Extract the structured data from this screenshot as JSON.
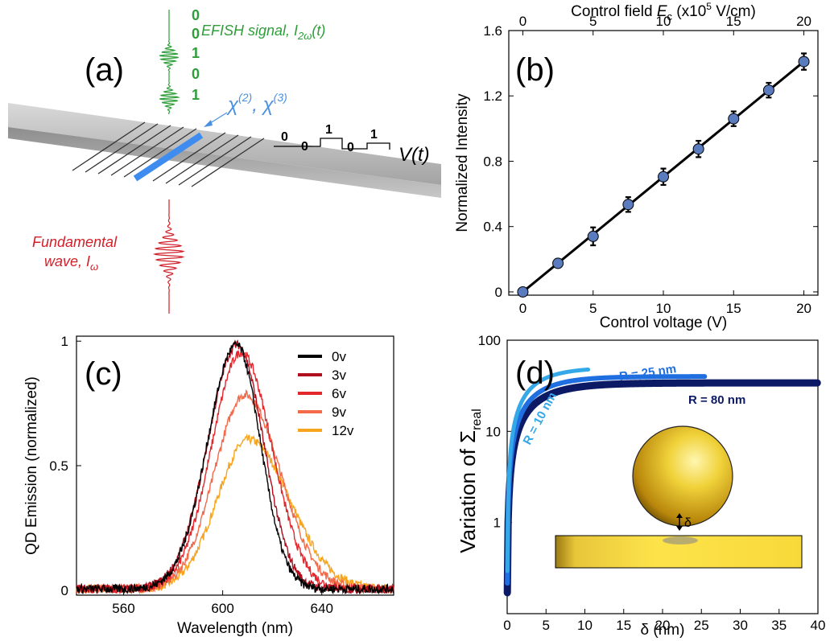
{
  "panel_a": {
    "label": "(a)",
    "efish_label": "EFISH signal, I",
    "efish_sub": "2ω",
    "efish_tail": "(t)",
    "bits_out": [
      "0",
      "0",
      "1",
      "0",
      "1"
    ],
    "chi_label": "χ",
    "chi2_sup": "(2)",
    "chi_sep": ", χ",
    "chi3_sup": "(3)",
    "control_bits": [
      "0",
      "0",
      "1",
      "0",
      "1"
    ],
    "vt_label": "V(t)",
    "fundamental_line1": "Fundamental",
    "fundamental_line2": "wave, I",
    "fundamental_sub": "ω",
    "colors": {
      "efish": "#2e9e3a",
      "chi": "#4a90e2",
      "fundamental": "#d0202a"
    }
  },
  "chart_data": [
    {
      "panel": "(b)",
      "type": "scatter",
      "xlabel": "Control voltage (V)",
      "ylabel": "Normalized Intensity",
      "top_xlabel_prefix": "Control field ",
      "top_xlabel_var": "E",
      "top_xlabel_sub": "c",
      "top_xlabel_mid": " (x10",
      "top_xlabel_exp": "5",
      "top_xlabel_tail": " V/cm)",
      "xlim": [
        -1,
        21
      ],
      "ylim": [
        -0.02,
        1.6
      ],
      "xticks": [
        0,
        5,
        10,
        15,
        20
      ],
      "xtick_labels": [
        "0",
        "5",
        "10",
        "15",
        "20"
      ],
      "yticks": [
        0,
        0.4,
        0.8,
        1.2,
        1.6
      ],
      "ytick_labels": [
        "0",
        "0.4",
        "0.8",
        "1.2",
        "1.6"
      ],
      "top_xticks": [
        0,
        5,
        10,
        15,
        20
      ],
      "top_xtick_labels": [
        "0",
        "5",
        "10",
        "15",
        "20"
      ],
      "x": [
        0,
        2.5,
        5,
        7.5,
        10,
        12.5,
        15,
        17.5,
        20
      ],
      "y": [
        0.0,
        0.175,
        0.34,
        0.535,
        0.705,
        0.875,
        1.06,
        1.235,
        1.41
      ],
      "yerr": [
        0.01,
        0.015,
        0.055,
        0.045,
        0.05,
        0.05,
        0.045,
        0.045,
        0.05
      ],
      "fit_line": true,
      "marker_color": "#5b7bbf"
    },
    {
      "panel": "(c)",
      "type": "line",
      "xlabel": "Wavelength (nm)",
      "ylabel": "QD Emission (normalized)",
      "xlim": [
        541,
        669
      ],
      "ylim": [
        -0.02,
        1.02
      ],
      "xticks": [
        560,
        600,
        640
      ],
      "xtick_labels": [
        "560",
        "600",
        "640"
      ],
      "yticks": [
        0,
        0.5,
        1
      ],
      "ytick_labels": [
        "0",
        "0.5",
        "1"
      ],
      "series": [
        {
          "name": "0v",
          "color": "#000000",
          "peak": 0.98,
          "center": 605.5,
          "sigma_l": 15.5,
          "sigma_r": 13.0
        },
        {
          "name": "3v",
          "color": "#b00d1d",
          "peak": 0.98,
          "center": 606.0,
          "sigma_l": 16.0,
          "sigma_r": 14.0
        },
        {
          "name": "6v",
          "color": "#e4262d",
          "peak": 0.95,
          "center": 607.5,
          "sigma_l": 16.0,
          "sigma_r": 16.5
        },
        {
          "name": "9v",
          "color": "#f26a4a",
          "peak": 0.78,
          "center": 609.0,
          "sigma_l": 16.5,
          "sigma_r": 19.0
        },
        {
          "name": "12v",
          "color": "#f7a51e",
          "peak": 0.6,
          "center": 610.5,
          "sigma_l": 17.0,
          "sigma_r": 22.0
        }
      ]
    },
    {
      "panel": "(d)",
      "type": "line",
      "xlabel": "δ (nm)",
      "ylabel": "Variation of Σ",
      "ylabel_sub": "real",
      "yscale": "log",
      "xlim": [
        0,
        40
      ],
      "ylim": [
        0.1,
        100
      ],
      "xticks": [
        0,
        5,
        10,
        15,
        20,
        25,
        30,
        35,
        40
      ],
      "xtick_labels": [
        "0",
        "5",
        "10",
        "15",
        "20",
        "25",
        "30",
        "35",
        "40"
      ],
      "yticks": [
        1,
        10,
        100
      ],
      "ytick_labels": [
        "1",
        "10",
        "100"
      ],
      "series": [
        {
          "name": "R = 80 nm",
          "color": "#0c1a66",
          "saturation": 34,
          "scale": 4.0,
          "xmax": 40
        },
        {
          "name": "R = 25 nm",
          "color": "#1f6fe0",
          "saturation": 40,
          "scale": 3.7,
          "xmax": 25.5
        },
        {
          "name": "R = 10 nm",
          "color": "#35a8e8",
          "saturation": 50,
          "scale": 3.4,
          "xmax": 10.5
        }
      ],
      "inset_label": "δ"
    }
  ]
}
